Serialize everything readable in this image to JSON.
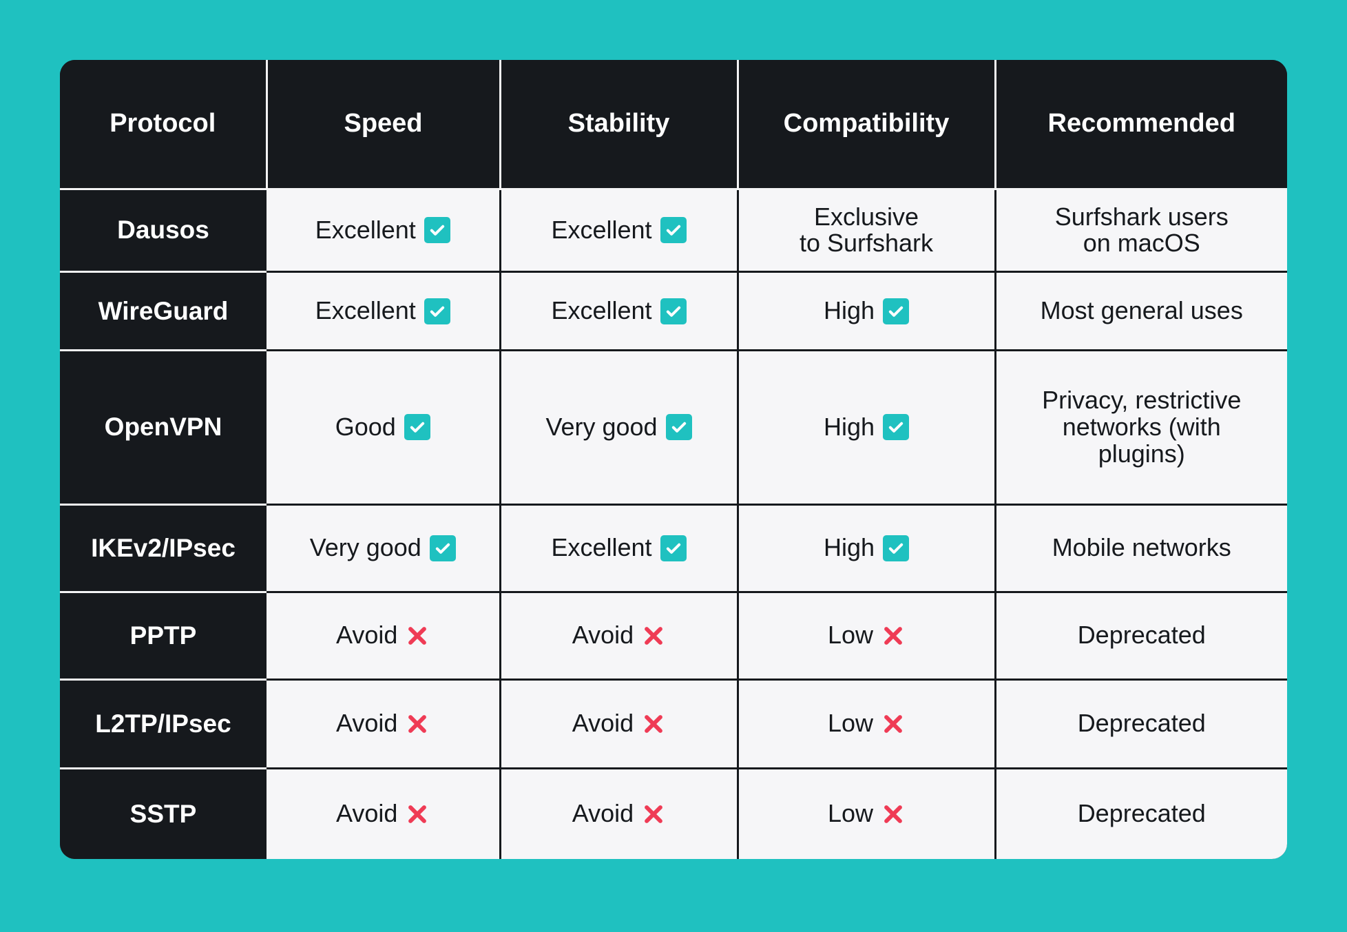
{
  "colors": {
    "background": "#1fc1c0",
    "header_bg": "#16191d",
    "cell_bg": "#f6f6f8",
    "check_color": "#1fc1c0",
    "cross_color": "#ef3b55"
  },
  "icons": {
    "positive": "check-box-icon",
    "negative": "cross-icon"
  },
  "table": {
    "headers": [
      "Protocol",
      "Speed",
      "Stability",
      "Compatibility",
      "Recommended"
    ],
    "rows": [
      {
        "protocol": "Dausos",
        "speed": {
          "text": "Excellent",
          "icon": "check"
        },
        "stability": {
          "text": "Excellent",
          "icon": "check"
        },
        "compatibility": {
          "text": "Exclusive\nto Surfshark",
          "icon": ""
        },
        "recommended": "Surfshark users\non macOS"
      },
      {
        "protocol": "WireGuard",
        "speed": {
          "text": "Excellent",
          "icon": "check"
        },
        "stability": {
          "text": "Excellent",
          "icon": "check"
        },
        "compatibility": {
          "text": "High",
          "icon": "check"
        },
        "recommended": "Most general uses"
      },
      {
        "protocol": "OpenVPN",
        "speed": {
          "text": "Good",
          "icon": "check"
        },
        "stability": {
          "text": "Very good",
          "icon": "check"
        },
        "compatibility": {
          "text": "High",
          "icon": "check"
        },
        "recommended": "Privacy, restrictive\nnetworks (with\nplugins)"
      },
      {
        "protocol": "IKEv2/IPsec",
        "speed": {
          "text": "Very good",
          "icon": "check"
        },
        "stability": {
          "text": "Excellent",
          "icon": "check"
        },
        "compatibility": {
          "text": "High",
          "icon": "check"
        },
        "recommended": "Mobile networks"
      },
      {
        "protocol": "PPTP",
        "speed": {
          "text": "Avoid",
          "icon": "cross"
        },
        "stability": {
          "text": "Avoid",
          "icon": "cross"
        },
        "compatibility": {
          "text": "Low",
          "icon": "cross"
        },
        "recommended": "Deprecated"
      },
      {
        "protocol": "L2TP/IPsec",
        "speed": {
          "text": "Avoid",
          "icon": "cross"
        },
        "stability": {
          "text": "Avoid",
          "icon": "cross"
        },
        "compatibility": {
          "text": "Low",
          "icon": "cross"
        },
        "recommended": "Deprecated"
      },
      {
        "protocol": "SSTP",
        "speed": {
          "text": "Avoid",
          "icon": "cross"
        },
        "stability": {
          "text": "Avoid",
          "icon": "cross"
        },
        "compatibility": {
          "text": "Low",
          "icon": "cross"
        },
        "recommended": "Deprecated"
      }
    ]
  }
}
